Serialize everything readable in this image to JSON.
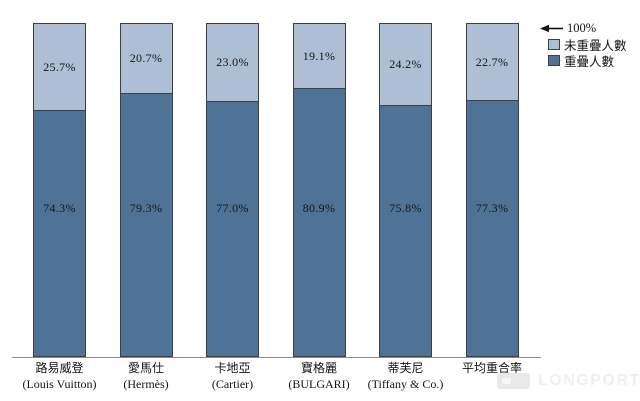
{
  "chart_data": {
    "type": "bar",
    "stacked": true,
    "orientation": "vertical",
    "ylim": [
      0,
      100
    ],
    "grid": false,
    "legend_position": "top-right",
    "axis_marker_label": "100%",
    "categories": [
      {
        "zh": "路易威登",
        "en": "(Louis Vuitton)"
      },
      {
        "zh": "愛馬仕",
        "en": "(Hermès)"
      },
      {
        "zh": "卡地亞",
        "en": "(Cartier)"
      },
      {
        "zh": "寶格麗",
        "en": "(BULGARI)"
      },
      {
        "zh": "蒂芙尼",
        "en": "(Tiffany & Co.)"
      },
      {
        "zh": "平均重合率",
        "en": ""
      }
    ],
    "series": [
      {
        "name": "重疊人數",
        "color": "#4f7396",
        "values": [
          74.3,
          79.3,
          77.0,
          80.9,
          75.8,
          77.3
        ]
      },
      {
        "name": "未重疊人數",
        "color": "#aebfd5",
        "values": [
          25.7,
          20.7,
          23.0,
          19.1,
          24.2,
          22.7
        ]
      }
    ],
    "value_label_suffix": "%",
    "bar_border_color": "#3f3f3f",
    "axis_line_color": "#8a8a8a"
  },
  "watermark": {
    "text": "LONGPORT",
    "color": "#efefef"
  }
}
